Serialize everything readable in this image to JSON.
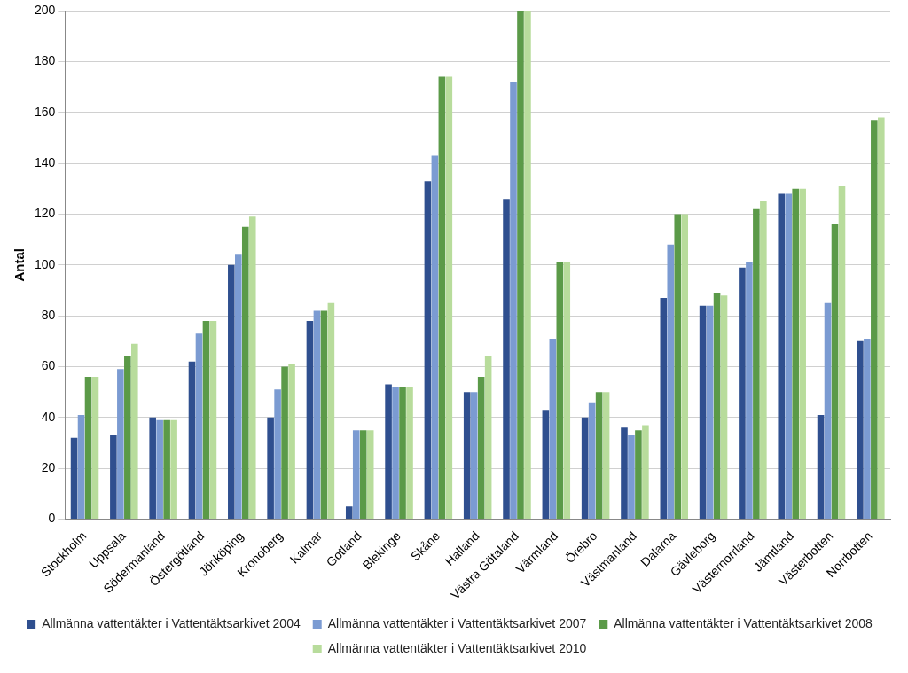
{
  "chart_data": {
    "type": "bar",
    "y_label": "Antal",
    "categories": [
      "Stockholm",
      "Uppsala",
      "Södermanland",
      "Östergötland",
      "Jönköping",
      "Kronoberg",
      "Kalmar",
      "Gotland",
      "Blekinge",
      "Skåne",
      "Halland",
      "Västra Götaland",
      "Värmland",
      "Örebro",
      "Västmanland",
      "Dalarna",
      "Gävleborg",
      "Västernorrland",
      "Jämtland",
      "Västerbotten",
      "Norrbotten"
    ],
    "series": [
      {
        "name": "Allmänna vattentäkter i Vattentäktsarkivet 2004",
        "color": "#2f4f8f",
        "values": [
          32,
          33,
          40,
          62,
          100,
          40,
          78,
          5,
          53,
          133,
          50,
          126,
          43,
          40,
          36,
          87,
          84,
          99,
          128,
          41,
          70
        ]
      },
      {
        "name": "Allmänna vattentäkter i Vattentäktsarkivet 2007",
        "color": "#7b9bd2",
        "values": [
          41,
          59,
          39,
          73,
          104,
          51,
          82,
          35,
          52,
          143,
          50,
          172,
          71,
          46,
          33,
          108,
          84,
          101,
          128,
          85,
          71
        ]
      },
      {
        "name": "Allmänna vattentäkter i Vattentäktsarkivet 2008",
        "color": "#5b9a48",
        "values": [
          56,
          64,
          39,
          78,
          115,
          60,
          82,
          35,
          52,
          174,
          56,
          200,
          101,
          50,
          35,
          120,
          89,
          122,
          130,
          116,
          157
        ]
      },
      {
        "name": "Allmänna vattentäkter i Vattentäktsarkivet 2010",
        "color": "#b8dc9c",
        "values": [
          56,
          69,
          39,
          78,
          119,
          61,
          85,
          35,
          52,
          174,
          64,
          200,
          101,
          50,
          37,
          120,
          88,
          125,
          130,
          131,
          158
        ]
      }
    ],
    "ylim": [
      0,
      200
    ],
    "yticks": [
      0,
      20,
      40,
      60,
      80,
      100,
      120,
      140,
      160,
      180,
      200
    ],
    "grid": true,
    "legend": "bottom"
  }
}
